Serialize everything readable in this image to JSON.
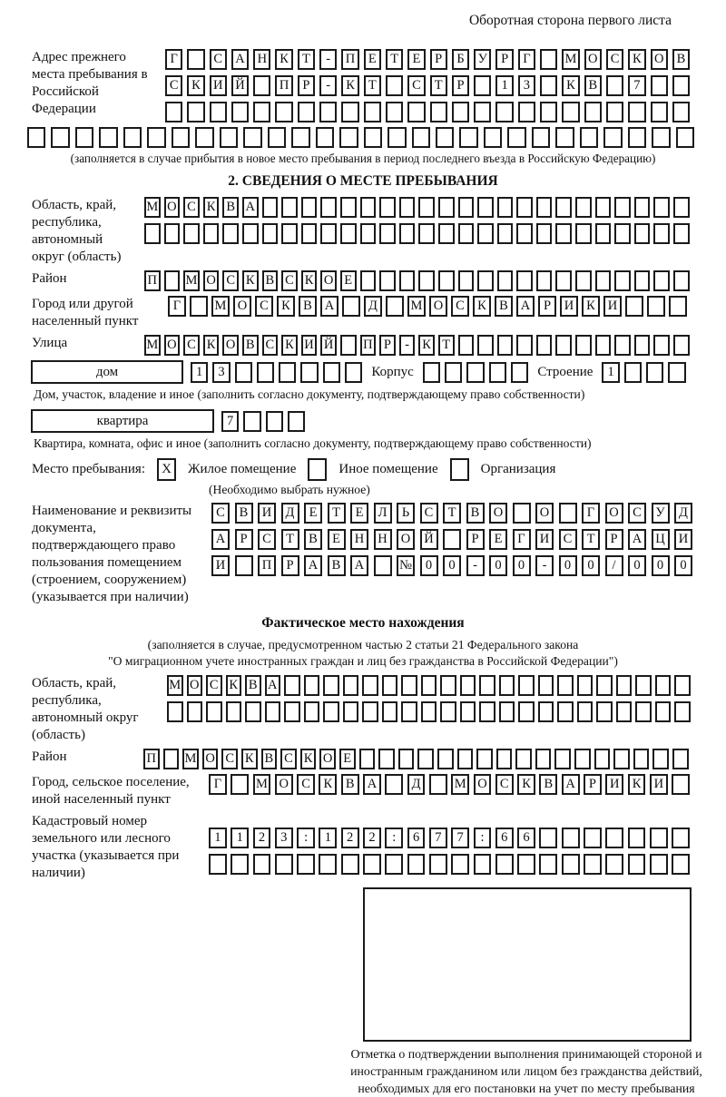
{
  "page": {
    "header_note": "Оборотная сторона первого листа"
  },
  "prev_address": {
    "label": "Адрес прежнего места пребывания в Российской Федерации",
    "caption": "(заполняется в случае прибытия в новое место пребывания в период последнего въезда в Российскую Федерацию)"
  },
  "section2": {
    "title": "2. СВЕДЕНИЯ О МЕСТЕ ПРЕБЫВАНИЯ",
    "region_label": "Область, край, республика, автономный округ (область)",
    "district_label": "Район",
    "city_label": "Город или другой населенный пункт",
    "street_label": "Улица",
    "house_box_label": "дом",
    "korpus_label": "Корпус",
    "stroenie_label": "Строение",
    "house_caption": "Дом, участок, владение и иное (заполнить согласно документу, подтверждающему право собственности)",
    "apartment_box_label": "квартира",
    "apartment_caption": "Квартира, комната, офис и иное (заполнить согласно документу, подтверждающему право собственности)",
    "stay_type_label": "Место пребывания:",
    "stay_options": [
      {
        "label": "Жилое помещение",
        "checked": "X"
      },
      {
        "label": "Иное помещение",
        "checked": ""
      },
      {
        "label": "Организация",
        "checked": ""
      }
    ],
    "choose_note": "(Необходимо выбрать нужное)",
    "doc_label": "Наименование и реквизиты документа, подтверждающего право пользования помещением (строением, сооружением) (указывается при наличии)"
  },
  "actual_location": {
    "title": "Фактическое место нахождения",
    "note_line1": "(заполняется в случае, предусмотренном частью 2 статьи 21 Федерального закона",
    "note_line2": "\"О миграционном учете иностранных граждан и лиц без гражданства в Российской Федерации\")",
    "region_label": "Область, край, республика, автономный округ (область)",
    "district_label": "Район",
    "city_label": "Город, сельское поселение, иной населенный пункт",
    "cadastral_label": "Кадастровый номер земельного или лесного участка (указывается при наличии)",
    "stamp_caption": "Отметка о подтверждении выполнения принимающей стороной и иностранным гражданином или лицом без гражданства действий, необходимых для его постановки на учет по месту пребывания"
  },
  "box_rows": {
    "prev_addr_1": {
      "chars": "Г САНКТ-ПЕТЕРБУРГ МОСКОВ",
      "total": 24
    },
    "prev_addr_2": {
      "chars": "СКИЙ ПР-КТ СТР 13 КВ 7",
      "total": 24
    },
    "prev_addr_3": {
      "chars": "",
      "total": 24
    },
    "prev_addr_4": {
      "chars": "",
      "total": 28
    },
    "region_1": {
      "chars": "МОСКВА",
      "total": 28
    },
    "region_2": {
      "chars": "",
      "total": 28
    },
    "district": {
      "chars": "П МОСКВСКОЕ",
      "total": 28
    },
    "city": {
      "chars": "Г МОСКВА Д МОСКВАРИКИ",
      "total": 24
    },
    "street": {
      "chars": "МОСКОВСКИЙ ПР-КТ",
      "total": 28
    },
    "house_num": {
      "chars": "13",
      "total": 8
    },
    "korpus": {
      "chars": "",
      "total": 5
    },
    "stroenie": {
      "chars": "1",
      "total": 4
    },
    "apartment_num": {
      "chars": "7",
      "total": 4
    },
    "doc_1": {
      "chars": "СВИДЕТЕЛЬСТВО О ГОСУД",
      "total": 21
    },
    "doc_2": {
      "chars": "АРСТВЕННОЙ РЕГИСТРАЦИ",
      "total": 21
    },
    "doc_3": {
      "chars": "И ПРАВА №00-00-00/000",
      "total": 21
    },
    "fact_region_1": {
      "chars": "МОСКВА",
      "total": 27
    },
    "fact_region_2": {
      "chars": "",
      "total": 27
    },
    "fact_district": {
      "chars": "П МОСКВСКОЕ",
      "total": 28
    },
    "fact_city": {
      "chars": "Г МОСКВА Д МОСКВАРИКИ",
      "total": 22
    },
    "cadastral_1": {
      "chars": "1123:122:677:66",
      "total": 22
    },
    "cadastral_2": {
      "chars": "",
      "total": 22
    }
  }
}
